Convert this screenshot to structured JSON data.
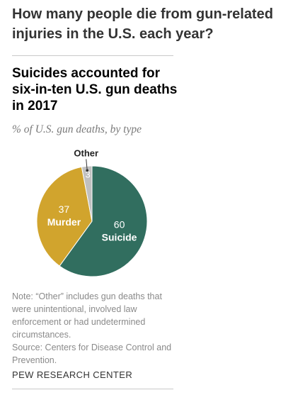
{
  "header": {
    "question": "How many people die from gun-related injuries in the U.S. each year?"
  },
  "chart_data": {
    "type": "pie",
    "title": "Suicides accounted for six-in-ten U.S. gun deaths in 2017",
    "subtitle": "% of U.S. gun deaths, by type",
    "slices": [
      {
        "label": "Suicide",
        "value": 60,
        "color": "#316e5f"
      },
      {
        "label": "Murder",
        "value": 37,
        "color": "#d1a42d"
      },
      {
        "label": "Other",
        "value": 3,
        "color": "#c0c0c0"
      }
    ]
  },
  "footer": {
    "note": "Note: “Other” includes gun deaths that were unintentional, involved law enforcement or had undetermined circumstances.",
    "source": "Source: Centers for Disease Control and Prevention.",
    "org": "PEW RESEARCH CENTER"
  }
}
